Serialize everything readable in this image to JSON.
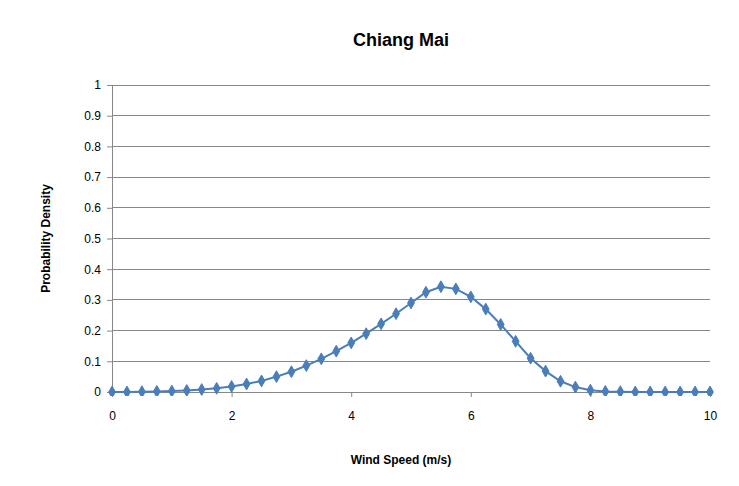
{
  "chart_data": {
    "type": "line",
    "title": "Chiang Mai",
    "x_label": "Wind Speed (m/s)",
    "y_label": "Probability Density",
    "x": [
      0,
      0.25,
      0.5,
      0.75,
      1,
      1.25,
      1.5,
      1.75,
      2,
      2.25,
      2.5,
      2.75,
      3,
      3.25,
      3.5,
      3.75,
      4,
      4.25,
      4.5,
      4.75,
      5,
      5.25,
      5.5,
      5.75,
      6,
      6.25,
      6.5,
      6.75,
      7,
      7.25,
      7.5,
      7.75,
      8,
      8.25,
      8.5,
      8.75,
      9,
      9.25,
      9.5,
      9.75,
      10
    ],
    "values": [
      0,
      0,
      0.001,
      0.002,
      0.003,
      0.005,
      0.008,
      0.012,
      0.018,
      0.026,
      0.036,
      0.05,
      0.066,
      0.086,
      0.108,
      0.133,
      0.16,
      0.19,
      0.222,
      0.255,
      0.29,
      0.325,
      0.343,
      0.336,
      0.31,
      0.27,
      0.22,
      0.165,
      0.11,
      0.068,
      0.035,
      0.016,
      0.006,
      0.002,
      0.001,
      0,
      0,
      0,
      0,
      0,
      0
    ],
    "color": "#4a7ebb",
    "marker": "diamond",
    "line_style": "solid",
    "xlim": [
      0,
      10
    ],
    "xticks": [
      0,
      2,
      4,
      6,
      8,
      10
    ],
    "ylim": [
      0,
      1
    ],
    "yticks": [
      0,
      0.1,
      0.2,
      0.3,
      0.4,
      0.5,
      0.6,
      0.7,
      0.8,
      0.9,
      1
    ],
    "grid": true
  }
}
